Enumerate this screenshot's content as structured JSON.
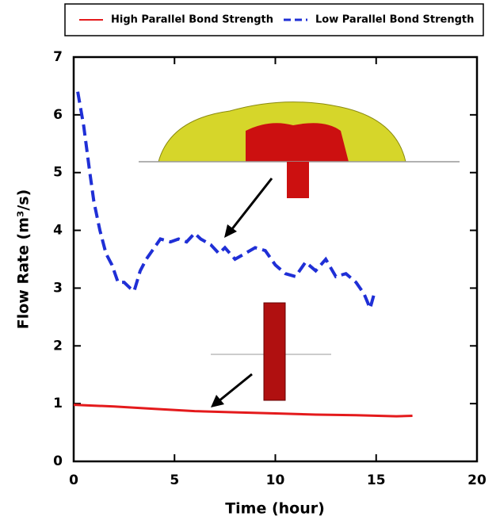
{
  "chart_data": {
    "type": "line",
    "xlabel": "Time (hour)",
    "ylabel": "Flow Rate (m³/s)",
    "xlim": [
      0,
      20
    ],
    "ylim": [
      0,
      7
    ],
    "xticks": [
      0,
      5,
      10,
      15,
      20
    ],
    "yticks": [
      0,
      1,
      2,
      3,
      4,
      5,
      6,
      7
    ],
    "series": [
      {
        "name": "High Parallel Bond Strength",
        "color": "#e41a1c",
        "dash": false,
        "x": [
          0,
          2,
          4,
          6,
          8,
          10,
          12,
          14,
          16,
          16.8
        ],
        "values": [
          0.98,
          0.95,
          0.91,
          0.87,
          0.85,
          0.83,
          0.81,
          0.8,
          0.78,
          0.79
        ]
      },
      {
        "name": "Low Parallel Bond Strength",
        "color": "#1f2fd6",
        "dash": true,
        "x": [
          0.2,
          0.5,
          0.8,
          1.0,
          1.3,
          1.6,
          1.9,
          2.2,
          2.5,
          2.8,
          3.0,
          3.3,
          3.6,
          4.0,
          4.3,
          4.8,
          5.2,
          5.6,
          6.0,
          6.3,
          6.8,
          7.2,
          7.5,
          8.0,
          8.5,
          9.0,
          9.5,
          10.0,
          10.5,
          11.0,
          11.5,
          12.0,
          12.5,
          13.0,
          13.5,
          14.0,
          14.4,
          14.7,
          14.9
        ],
        "values": [
          6.4,
          5.8,
          5.0,
          4.5,
          4.0,
          3.6,
          3.4,
          3.1,
          3.1,
          3.0,
          2.95,
          3.3,
          3.5,
          3.7,
          3.85,
          3.8,
          3.85,
          3.8,
          3.95,
          3.85,
          3.75,
          3.6,
          3.7,
          3.5,
          3.6,
          3.7,
          3.65,
          3.4,
          3.25,
          3.2,
          3.45,
          3.3,
          3.5,
          3.2,
          3.25,
          3.1,
          2.9,
          2.65,
          2.9
        ]
      }
    ]
  }
}
